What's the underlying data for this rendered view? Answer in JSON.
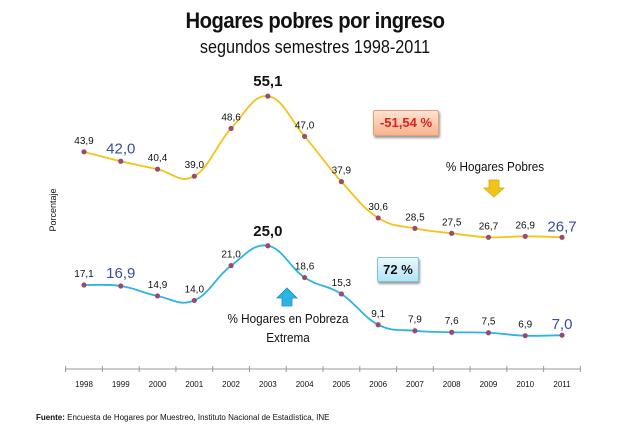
{
  "chart_data": {
    "type": "line",
    "title": "Hogares pobres por ingreso",
    "subtitle": "segundos semestres 1998-2011",
    "ylabel": "Porcentaje",
    "xlabel": "",
    "ylim": [
      0,
      60
    ],
    "grid": false,
    "categories": [
      "1998",
      "1999",
      "2000",
      "2001",
      "2002",
      "2003",
      "2004",
      "2005",
      "2006",
      "2007",
      "2008",
      "2009",
      "2010",
      "2011"
    ],
    "series": [
      {
        "name": "% Hogares Pobres",
        "color": "#f2c41a",
        "values": [
          43.9,
          42.0,
          40.4,
          39.0,
          48.6,
          55.1,
          47.0,
          37.9,
          30.6,
          28.5,
          27.5,
          26.7,
          26.9,
          26.7
        ],
        "labels": [
          "43,9",
          "42,0",
          "40,4",
          "39,0",
          "48,6",
          "55,1",
          "47,0",
          "37,9",
          "30,6",
          "28,5",
          "27,5",
          "26,7",
          "26,9",
          "26,7"
        ]
      },
      {
        "name": "% Hogares en Pobreza Extrema",
        "color": "#2db4e2",
        "values": [
          17.1,
          16.9,
          14.9,
          14.0,
          21.0,
          25.0,
          18.6,
          15.3,
          9.1,
          7.9,
          7.6,
          7.5,
          6.9,
          7.0
        ],
        "labels": [
          "17,1",
          "16,9",
          "14,9",
          "14,0",
          "21,0",
          "25,0",
          "18,6",
          "15,3",
          "9,1",
          "7,9",
          "7,6",
          "7,5",
          "6,9",
          "7,0"
        ]
      }
    ],
    "marker_color": "#9a4a70",
    "highlight_color": "#3a4c9e",
    "annotations": {
      "poor_change": "-51,54 %",
      "extreme_change": "72 %",
      "poor_label": "% Hogares Pobres",
      "extreme_label_line1": "% Hogares en Pobreza",
      "extreme_label_line2": "Extrema"
    }
  },
  "source": {
    "label": "Fuente:",
    "text": " Encuesta de Hogares por Muestreo,  Instituto Nacional de Estadística, INE"
  }
}
